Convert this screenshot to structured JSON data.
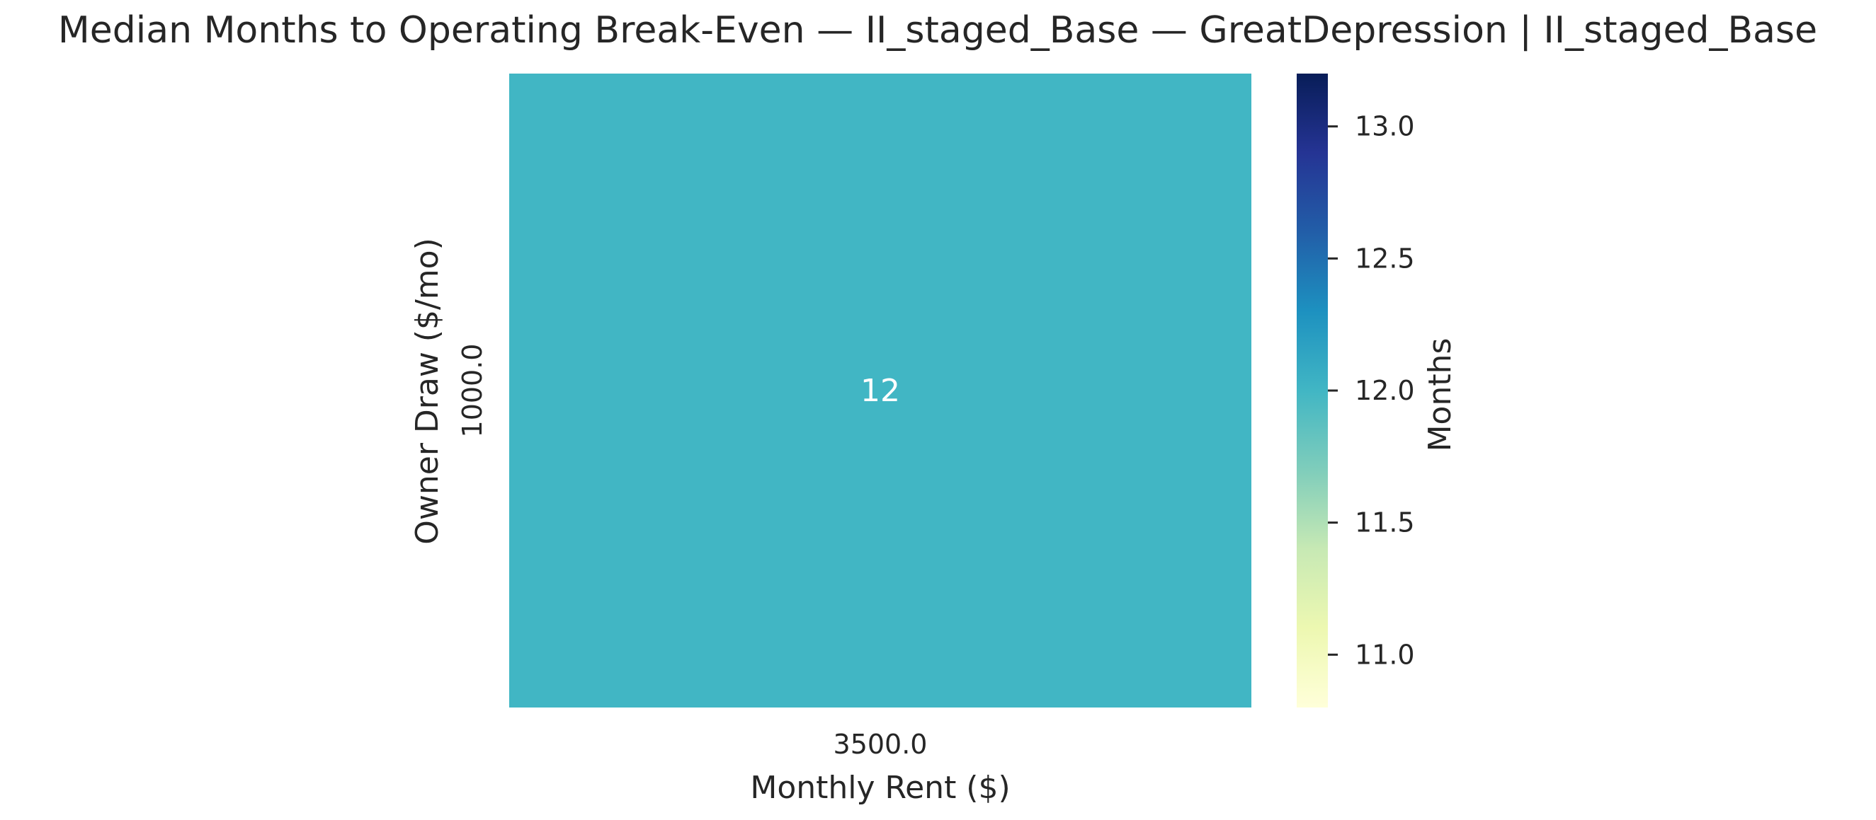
{
  "chart_data": {
    "type": "heatmap",
    "title": "Median Months to Operating Break-Even — II_staged_Base — GreatDepression | II_staged_Base",
    "xlabel": "Monthly Rent ($)",
    "ylabel": "Owner Draw ($/mo)",
    "x_categories": [
      "3500.0"
    ],
    "y_categories": [
      "1000.0"
    ],
    "values": [
      [
        12
      ]
    ],
    "cell_labels": [
      [
        "12"
      ]
    ],
    "colorbar": {
      "label": "Months",
      "range": [
        10.8,
        13.2
      ],
      "ticks": [
        11.0,
        11.5,
        12.0,
        12.5,
        13.0
      ],
      "tick_labels": [
        "11.0",
        "11.5",
        "12.0",
        "12.5",
        "13.0"
      ],
      "colormap": "YlGnBu",
      "colors": [
        "#ffffd9",
        "#edf8b1",
        "#c7e9b4",
        "#7fcdbb",
        "#41b6c4",
        "#1d91c0",
        "#225ea8",
        "#253494",
        "#081d58"
      ]
    },
    "grid": false
  }
}
